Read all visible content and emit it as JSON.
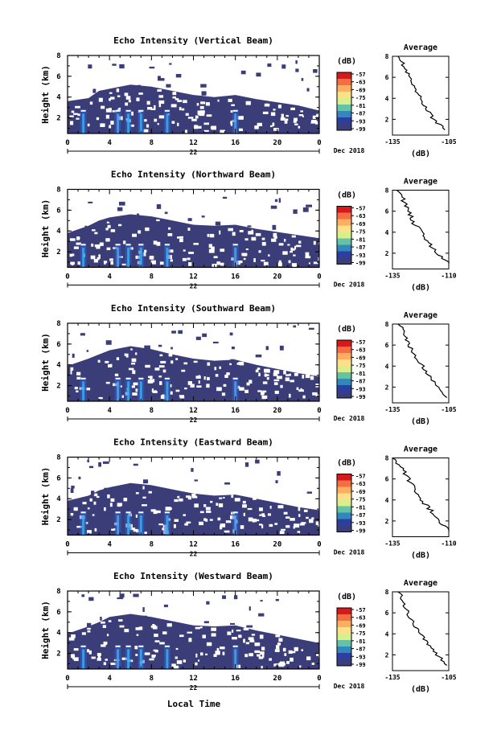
{
  "figure": {
    "xlabel": "Local Time",
    "date_label": "Dec 2018",
    "day_label": "22",
    "main_ylabel": "Height (km)",
    "main_yticks": [
      "2",
      "4",
      "6",
      "8"
    ],
    "main_xticks": [
      "0",
      "4",
      "8",
      "12",
      "16",
      "20",
      "0"
    ],
    "colorbar_unit": "(dB)",
    "colorbar_ticks": [
      "-57",
      "-63",
      "-69",
      "-75",
      "-81",
      "-87",
      "-93",
      "-99"
    ],
    "colorbar_colors": [
      "#d7191c",
      "#f46d43",
      "#fdae61",
      "#fee08b",
      "#d9ef8b",
      "#66c2a5",
      "#3288bd",
      "#2c3ea0",
      "#3a3e7a"
    ],
    "echo_color": "#3b3d78",
    "avg_title": "Average",
    "avg_xlabel": "(dB)",
    "avg_yticks": [
      "2",
      "4",
      "6",
      "8"
    ]
  },
  "chart_data": [
    {
      "type": "heatmap",
      "title": "Echo Intensity (Vertical Beam)",
      "ylabel": "Height (km)",
      "xlabel": "Local Time",
      "x_range_hours": [
        0,
        24
      ],
      "y_range_km": [
        0.5,
        8
      ],
      "z_range_db": [
        -99,
        -57
      ],
      "echo_top_km": [
        [
          0,
          3.6
        ],
        [
          2,
          3.9
        ],
        [
          3,
          4.6
        ],
        [
          4,
          4.8
        ],
        [
          6,
          5.2
        ],
        [
          8,
          5.0
        ],
        [
          10,
          4.6
        ],
        [
          12,
          4.2
        ],
        [
          14,
          4.0
        ],
        [
          16,
          4.2
        ],
        [
          18,
          3.8
        ],
        [
          20,
          3.5
        ],
        [
          22,
          3.2
        ],
        [
          24,
          2.7
        ]
      ],
      "strong_echo_times": [
        1.5,
        4.8,
        5.8,
        7.0,
        9.5,
        16.0
      ],
      "profile": {
        "title": "Average",
        "xlabel": "(dB)",
        "xticks": [
          "-135",
          "-105"
        ],
        "xlim": [
          -135,
          -105
        ],
        "height_km": [
          8,
          7,
          6,
          5,
          4,
          3,
          2,
          1
        ],
        "db": [
          -131,
          -129,
          -126,
          -124,
          -120,
          -117,
          -113,
          -107
        ]
      }
    },
    {
      "type": "heatmap",
      "title": "Echo Intensity (Northward Beam)",
      "ylabel": "Height (km)",
      "xlabel": "Local Time",
      "x_range_hours": [
        0,
        24
      ],
      "y_range_km": [
        0.5,
        8
      ],
      "z_range_db": [
        -99,
        -57
      ],
      "echo_top_km": [
        [
          0,
          3.8
        ],
        [
          2,
          4.5
        ],
        [
          3,
          5.0
        ],
        [
          4,
          5.3
        ],
        [
          6,
          5.6
        ],
        [
          8,
          5.4
        ],
        [
          10,
          5.0
        ],
        [
          12,
          4.6
        ],
        [
          14,
          4.5
        ],
        [
          16,
          4.6
        ],
        [
          18,
          4.2
        ],
        [
          20,
          3.9
        ],
        [
          22,
          3.6
        ],
        [
          24,
          3.3
        ]
      ],
      "strong_echo_times": [
        1.5,
        4.8,
        5.8,
        7.0,
        9.5,
        16.0
      ],
      "profile": {
        "title": "Average",
        "xlabel": "(dB)",
        "xticks": [
          "-135",
          "-110"
        ],
        "xlim": [
          -135,
          -110
        ],
        "height_km": [
          8,
          7,
          6,
          5,
          4,
          3,
          2,
          1
        ],
        "db": [
          -132,
          -130,
          -128,
          -126,
          -122,
          -119,
          -115,
          -110
        ]
      }
    },
    {
      "type": "heatmap",
      "title": "Echo Intensity (Southward Beam)",
      "ylabel": "Height (km)",
      "xlabel": "Local Time",
      "x_range_hours": [
        0,
        24
      ],
      "y_range_km": [
        0.5,
        8
      ],
      "z_range_db": [
        -99,
        -57
      ],
      "echo_top_km": [
        [
          0,
          3.9
        ],
        [
          2,
          4.6
        ],
        [
          3,
          5.0
        ],
        [
          4,
          5.4
        ],
        [
          6,
          5.8
        ],
        [
          8,
          5.5
        ],
        [
          10,
          5.0
        ],
        [
          12,
          4.6
        ],
        [
          14,
          4.4
        ],
        [
          16,
          4.5
        ],
        [
          18,
          4.0
        ],
        [
          20,
          3.6
        ],
        [
          22,
          3.2
        ],
        [
          24,
          2.9
        ]
      ],
      "strong_echo_times": [
        1.5,
        4.8,
        5.8,
        7.0,
        9.5,
        16.0
      ],
      "profile": {
        "title": "Average",
        "xlabel": "(dB)",
        "xticks": [
          "-135",
          "-105"
        ],
        "xlim": [
          -135,
          -105
        ],
        "height_km": [
          8,
          7,
          6,
          5,
          4,
          3,
          2,
          1
        ],
        "db": [
          -131,
          -129,
          -126,
          -123,
          -119,
          -115,
          -111,
          -106
        ]
      }
    },
    {
      "type": "heatmap",
      "title": "Echo Intensity (Eastward Beam)",
      "ylabel": "Height (km)",
      "xlabel": "Local Time",
      "x_range_hours": [
        0,
        24
      ],
      "y_range_km": [
        0.5,
        8
      ],
      "z_range_db": [
        -99,
        -57
      ],
      "echo_top_km": [
        [
          0,
          3.8
        ],
        [
          2,
          4.3
        ],
        [
          3,
          4.8
        ],
        [
          4,
          5.1
        ],
        [
          6,
          5.5
        ],
        [
          8,
          5.3
        ],
        [
          10,
          4.9
        ],
        [
          12,
          4.5
        ],
        [
          14,
          4.3
        ],
        [
          16,
          4.4
        ],
        [
          18,
          4.0
        ],
        [
          20,
          3.6
        ],
        [
          22,
          3.2
        ],
        [
          24,
          2.9
        ]
      ],
      "strong_echo_times": [
        1.5,
        4.8,
        5.8,
        7.0,
        9.5,
        16.0
      ],
      "profile": {
        "title": "Average",
        "xlabel": "(dB)",
        "xticks": [
          "-135",
          "-110"
        ],
        "xlim": [
          -135,
          -110
        ],
        "height_km": [
          8,
          7,
          6,
          5,
          4,
          3,
          2,
          1
        ],
        "db": [
          -134,
          -131,
          -128,
          -125,
          -122,
          -118,
          -114,
          -110
        ]
      }
    },
    {
      "type": "heatmap",
      "title": "Echo Intensity (Westward Beam)",
      "ylabel": "Height (km)",
      "xlabel": "Local Time",
      "x_range_hours": [
        0,
        24
      ],
      "y_range_km": [
        0.5,
        8
      ],
      "z_range_db": [
        -99,
        -57
      ],
      "echo_top_km": [
        [
          0,
          3.9
        ],
        [
          2,
          4.6
        ],
        [
          3,
          5.0
        ],
        [
          4,
          5.5
        ],
        [
          6,
          5.8
        ],
        [
          8,
          5.5
        ],
        [
          10,
          5.1
        ],
        [
          12,
          4.7
        ],
        [
          14,
          4.6
        ],
        [
          16,
          4.7
        ],
        [
          18,
          4.2
        ],
        [
          20,
          3.8
        ],
        [
          22,
          3.4
        ],
        [
          24,
          3.0
        ]
      ],
      "strong_echo_times": [
        1.5,
        4.8,
        5.8,
        7.0,
        9.5,
        16.0
      ],
      "profile": {
        "title": "Average",
        "xlabel": "(dB)",
        "xticks": [
          "-135",
          "-105"
        ],
        "xlim": [
          -135,
          -105
        ],
        "height_km": [
          8,
          7,
          6,
          5,
          4,
          3,
          2,
          1
        ],
        "db": [
          -131,
          -129,
          -127,
          -124,
          -120,
          -116,
          -111,
          -106
        ]
      }
    }
  ]
}
